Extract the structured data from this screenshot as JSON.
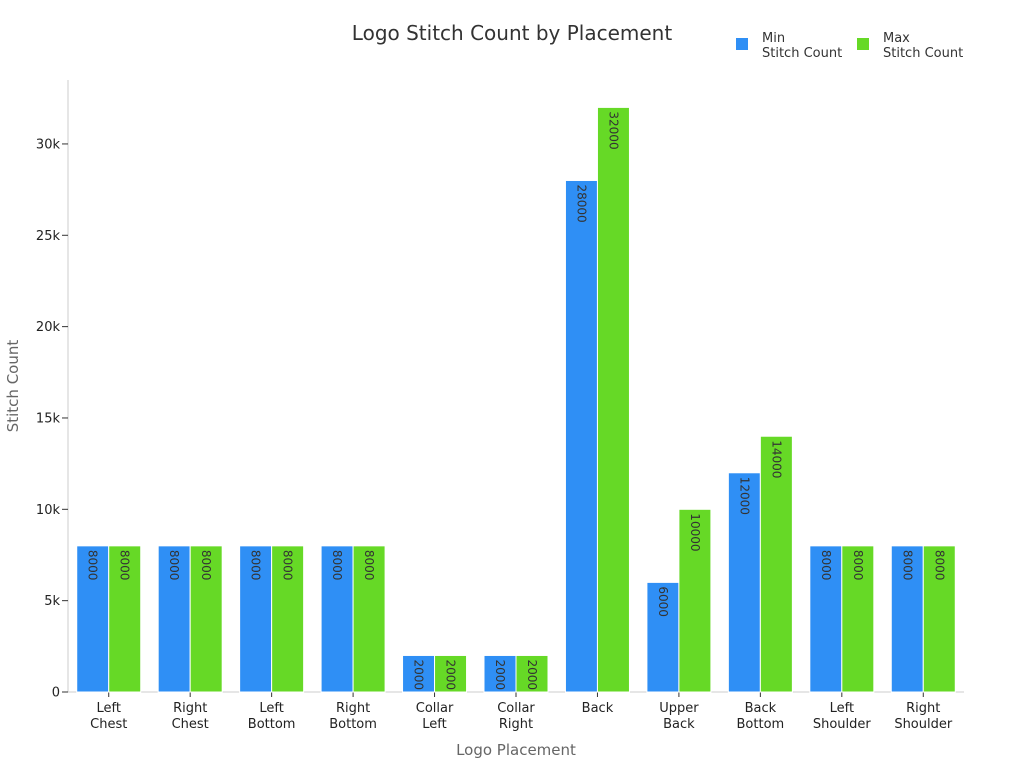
{
  "chart_data": {
    "type": "bar",
    "title": "Logo Stitch Count by Placement",
    "xlabel": "Logo Placement",
    "ylabel": "Stitch Count",
    "categories": [
      "Left Chest",
      "Right Chest",
      "Left Bottom",
      "Right Bottom",
      "Collar Left",
      "Collar Right",
      "Back",
      "Upper Back",
      "Back Bottom",
      "Left Shoulder",
      "Right Shoulder"
    ],
    "series": [
      {
        "name": "Min Stitch Count",
        "color": "#2f8ff5",
        "values": [
          8000,
          8000,
          8000,
          8000,
          2000,
          2000,
          28000,
          6000,
          12000,
          8000,
          8000
        ]
      },
      {
        "name": "Max Stitch Count",
        "color": "#66d926",
        "values": [
          8000,
          8000,
          8000,
          8000,
          2000,
          2000,
          32000,
          10000,
          14000,
          8000,
          8000
        ]
      }
    ],
    "ylim": [
      0,
      33500
    ],
    "yticks": [
      0,
      5000,
      10000,
      15000,
      20000,
      25000,
      30000
    ],
    "ytick_labels": [
      "0",
      "5k",
      "10k",
      "15k",
      "20k",
      "25k",
      "30k"
    ],
    "legend_position": "top-right",
    "grid": false,
    "data_labels": true
  }
}
